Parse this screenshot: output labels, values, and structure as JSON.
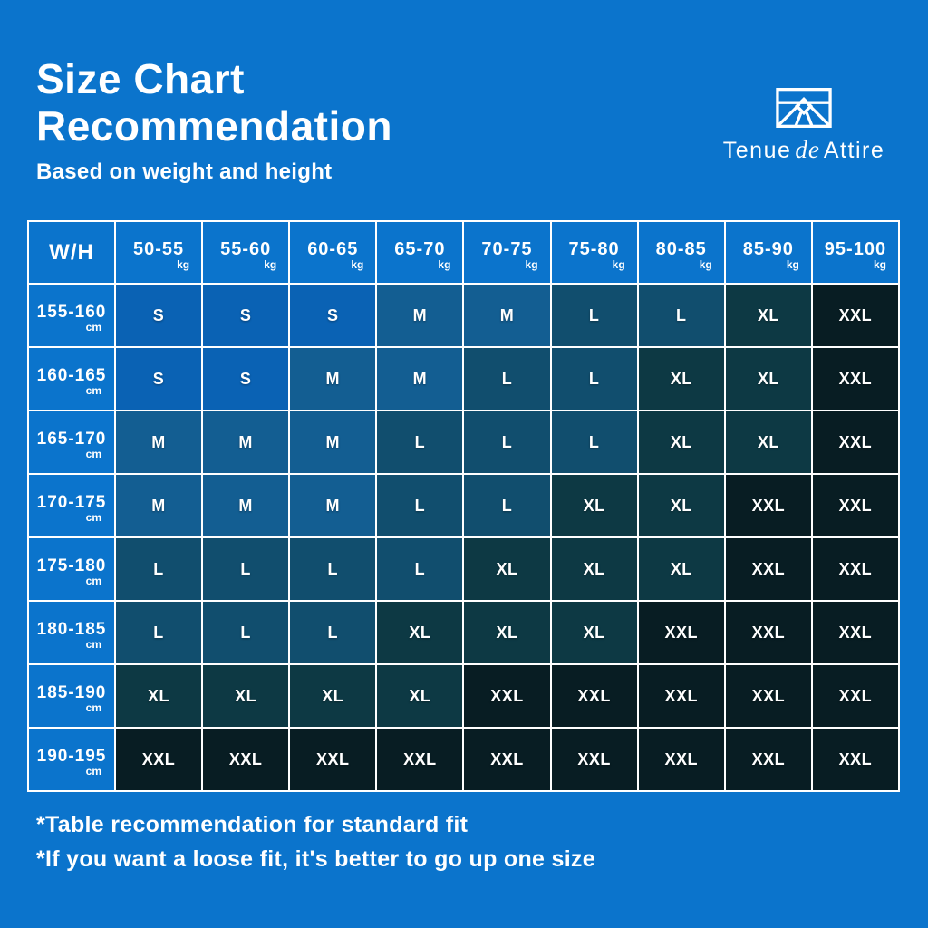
{
  "header": {
    "title_line1": "Size Chart",
    "title_line2": "Recommendation",
    "subtitle": "Based on weight and height"
  },
  "brand": {
    "word1": "Tenue",
    "word2": "de",
    "word3": "Attire",
    "icon": "mountain-frame-icon"
  },
  "colors": {
    "page_background": "#0b74cc",
    "grid_line": "#ffffff",
    "text": "#ffffff"
  },
  "chart_data": {
    "type": "heatmap",
    "title": "Size Chart Recommendation",
    "subtitle": "Based on weight and height",
    "corner_label": "W/H",
    "columns": [
      "50-55",
      "55-60",
      "60-65",
      "65-70",
      "70-75",
      "75-80",
      "80-85",
      "85-90",
      "95-100"
    ],
    "column_unit": "kg",
    "rows": [
      "155-160",
      "160-165",
      "165-170",
      "170-175",
      "175-180",
      "180-185",
      "185-190",
      "190-195"
    ],
    "row_unit": "cm",
    "values": [
      [
        "S",
        "S",
        "S",
        "M",
        "M",
        "L",
        "L",
        "XL",
        "XXL"
      ],
      [
        "S",
        "S",
        "M",
        "M",
        "L",
        "L",
        "XL",
        "XL",
        "XXL"
      ],
      [
        "M",
        "M",
        "M",
        "L",
        "L",
        "L",
        "XL",
        "XL",
        "XXL"
      ],
      [
        "M",
        "M",
        "M",
        "L",
        "L",
        "XL",
        "XL",
        "XXL",
        "XXL"
      ],
      [
        "L",
        "L",
        "L",
        "L",
        "XL",
        "XL",
        "XL",
        "XXL",
        "XXL"
      ],
      [
        "L",
        "L",
        "L",
        "XL",
        "XL",
        "XL",
        "XXL",
        "XXL",
        "XXL"
      ],
      [
        "XL",
        "XL",
        "XL",
        "XL",
        "XXL",
        "XXL",
        "XXL",
        "XXL",
        "XXL"
      ],
      [
        "XXL",
        "XXL",
        "XXL",
        "XXL",
        "XXL",
        "XXL",
        "XXL",
        "XXL",
        "XXL"
      ]
    ],
    "cell_colors": {
      "S": "#0a62b4",
      "M": "#135e92",
      "L": "#114e6e",
      "XL": "#0d3944",
      "XXL": "#081d23"
    },
    "legend_position": "none",
    "grid": true
  },
  "footnotes": {
    "line1": "*Table recommendation for standard fit",
    "line2": "*If you want a loose fit, it's better to go up one size"
  }
}
